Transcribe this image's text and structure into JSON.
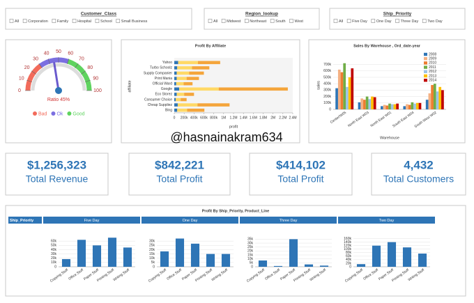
{
  "filters": [
    {
      "title": "Customer_Class",
      "options": [
        "All",
        "Corporation",
        "Family",
        "Hospital",
        "School",
        "Small Business"
      ]
    },
    {
      "title": "Region_lookup",
      "options": [
        "All",
        "Midwest",
        "Northeast",
        "South",
        "West"
      ]
    },
    {
      "title": "Ship_Priority",
      "options": [
        "All",
        "Five Day",
        "One Day",
        "Three Day",
        "Two Day"
      ]
    }
  ],
  "watermark": "@hasnainakram634",
  "kpis": [
    {
      "value": "$1,256,323",
      "label": "Total Revenue"
    },
    {
      "value": "$842,221",
      "label": "Total Profit"
    },
    {
      "value": "$414,102",
      "label": "Total Profit"
    },
    {
      "value": "4,432",
      "label": "Total Customers"
    }
  ],
  "bottom_panel": {
    "title": "Profit By Ship_Priority, Product_Line",
    "header": "Ship_Priority"
  },
  "chart_data": [
    {
      "type": "gauge",
      "value": 45,
      "value_label": "Ratio 45%",
      "ylim": [
        0,
        100
      ],
      "yticks": [
        0,
        10,
        20,
        30,
        40,
        50,
        60,
        70,
        80,
        90,
        100
      ],
      "series": [
        {
          "name": "Bad",
          "color": "#f26b5b",
          "range": [
            0,
            30
          ]
        },
        {
          "name": "Ok",
          "color": "#7b6fe0",
          "range": [
            30,
            60
          ]
        },
        {
          "name": "Good",
          "color": "#5fd35f",
          "range": [
            60,
            100
          ]
        }
      ]
    },
    {
      "type": "bar",
      "orientation": "horizontal",
      "stacked": true,
      "title": "Profit By Affiliate",
      "xlabel": "profit",
      "ylabel": "affiliate",
      "categories": [
        "Yahoo",
        "Turbo Schoolz",
        "Supply Companier",
        "Print Mania",
        "Official Ward",
        "Google",
        "Eco Storez",
        "Consumer Choice",
        "Cheap Suppliez",
        "Bing"
      ],
      "series": [
        {
          "color": "#2e75b6",
          "values": [
            80000,
            60000,
            50000,
            50000,
            40000,
            100000,
            50000,
            30000,
            70000,
            60000
          ]
        },
        {
          "color": "#ffd966",
          "values": [
            400000,
            300000,
            250000,
            200000,
            150000,
            800000,
            150000,
            100000,
            400000,
            200000
          ]
        },
        {
          "color": "#f4a53b",
          "values": [
            450000,
            350000,
            300000,
            250000,
            180000,
            1400000,
            200000,
            120000,
            650000,
            350000
          ]
        }
      ],
      "xlim": [
        0,
        2400000
      ],
      "xticks": [
        0,
        {
          "value": 200000,
          "label": "200k"
        },
        {
          "value": 400000,
          "label": "400k"
        },
        {
          "value": 600000,
          "label": "600k"
        },
        {
          "value": 800000,
          "label": "800k"
        },
        {
          "value": 1000000,
          "label": "1M"
        },
        {
          "value": 1200000,
          "label": "1.2M"
        },
        {
          "value": 1400000,
          "label": "1.4M"
        },
        {
          "value": 1600000,
          "label": "1.6M"
        },
        {
          "value": 1800000,
          "label": "1.8M"
        },
        {
          "value": 2000000,
          "label": "2M"
        },
        {
          "value": 2200000,
          "label": "2.2M"
        },
        {
          "value": 2400000,
          "label": "2.4M"
        }
      ]
    },
    {
      "type": "bar",
      "title": "Sales By Warehouse , Ord_date-year",
      "xlabel": "Warehouse",
      "ylabel": "sales",
      "legend": "upper right",
      "grid": true,
      "categories": [
        "Center/W05",
        "North East W03",
        "North East W01",
        "South East W04",
        "South West W02"
      ],
      "series": [
        {
          "name": "2008",
          "color": "#2e75b6",
          "values": [
            330000,
            110000,
            50000,
            50000,
            150000
          ]
        },
        {
          "name": "2009",
          "color": "#f4b183",
          "values": [
            620000,
            170000,
            70000,
            80000,
            250000
          ]
        },
        {
          "name": "2010",
          "color": "#ed7d31",
          "values": [
            580000,
            150000,
            60000,
            70000,
            380000
          ]
        },
        {
          "name": "2011",
          "color": "#70ad47",
          "values": [
            720000,
            200000,
            90000,
            110000,
            400000
          ]
        },
        {
          "name": "2012",
          "color": "#9dc3e6",
          "values": [
            350000,
            160000,
            80000,
            90000,
            280000
          ]
        },
        {
          "name": "2013",
          "color": "#ffc000",
          "values": [
            500000,
            200000,
            80000,
            100000,
            350000
          ]
        },
        {
          "name": "2014",
          "color": "#c00000",
          "values": [
            640000,
            190000,
            90000,
            100000,
            300000
          ]
        }
      ],
      "ylim": [
        0,
        750000
      ],
      "yticks": [
        0,
        {
          "value": 100000,
          "label": "100k"
        },
        {
          "value": 200000,
          "label": "200k"
        },
        {
          "value": 300000,
          "label": "300k"
        },
        {
          "value": 400000,
          "label": "400k"
        },
        {
          "value": 500000,
          "label": "500k"
        },
        {
          "value": 600000,
          "label": "600k"
        },
        {
          "value": 700000,
          "label": "700k"
        }
      ]
    },
    {
      "type": "bar",
      "title": "Five Day",
      "color": "#2e75b6",
      "grid": true,
      "categories": [
        "Copying Stuff",
        "Office Stuff",
        "Paper Stuff",
        "Printing Stuff",
        "Writing Stuff"
      ],
      "values": [
        18000,
        63000,
        50000,
        68000,
        45000
      ],
      "ylim": [
        0,
        70000
      ],
      "yticks": [
        0,
        {
          "value": 10000,
          "label": "10k"
        },
        {
          "value": 20000,
          "label": "20k"
        },
        {
          "value": 30000,
          "label": "30k"
        },
        {
          "value": 40000,
          "label": "40k"
        },
        {
          "value": 50000,
          "label": "50k"
        },
        {
          "value": 60000,
          "label": "60k"
        }
      ]
    },
    {
      "type": "bar",
      "title": "One Day",
      "color": "#2e75b6",
      "grid": true,
      "categories": [
        "Copying Stuff",
        "Office Stuff",
        "Paper Stuff",
        "Printing Stuff",
        "Writing Stuff"
      ],
      "values": [
        18000,
        33000,
        27000,
        15000,
        15000
      ],
      "ylim": [
        0,
        35000
      ],
      "yticks": [
        0,
        {
          "value": 5000,
          "label": "5k"
        },
        {
          "value": 10000,
          "label": "10k"
        },
        {
          "value": 15000,
          "label": "15k"
        },
        {
          "value": 20000,
          "label": "20k"
        },
        {
          "value": 25000,
          "label": "25k"
        },
        {
          "value": 30000,
          "label": "30k"
        }
      ]
    },
    {
      "type": "bar",
      "title": "Three Day",
      "color": "#2e75b6",
      "grid": true,
      "categories": [
        "Copying Stuff",
        "Office Stuff",
        "Paper Stuff",
        "Printing Stuff",
        "Writing Stuff"
      ],
      "values": [
        8000,
        1000,
        35000,
        3000,
        1500
      ],
      "ylim": [
        0,
        38000
      ],
      "yticks": [
        0,
        {
          "value": 5000,
          "label": "5k"
        },
        {
          "value": 10000,
          "label": "10k"
        },
        {
          "value": 15000,
          "label": "15k"
        },
        {
          "value": 20000,
          "label": "20k"
        },
        {
          "value": 25000,
          "label": "25k"
        },
        {
          "value": 30000,
          "label": "30k"
        },
        {
          "value": 35000,
          "label": "35k"
        }
      ]
    },
    {
      "type": "bar",
      "title": "Two Day",
      "color": "#2e75b6",
      "grid": true,
      "categories": [
        "Copying Stuff",
        "Office Stuff",
        "Paper Stuff",
        "Printing Stuff",
        "Writing Stuff"
      ],
      "values": [
        15000,
        120000,
        140000,
        110000,
        75000
      ],
      "ylim": [
        0,
        170000
      ],
      "yticks": [
        0,
        {
          "value": 20000,
          "label": "20k"
        },
        {
          "value": 40000,
          "label": "40k"
        },
        {
          "value": 60000,
          "label": "60k"
        },
        {
          "value": 80000,
          "label": "80k"
        },
        {
          "value": 100000,
          "label": "100k"
        },
        {
          "value": 120000,
          "label": "120k"
        },
        {
          "value": 140000,
          "label": "140k"
        },
        {
          "value": 160000,
          "label": "160k"
        }
      ]
    }
  ]
}
